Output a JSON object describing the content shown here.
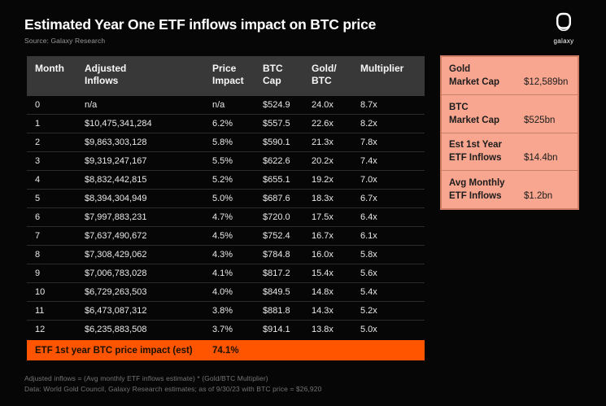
{
  "header": {
    "title": "Estimated Year One ETF inflows impact on BTC price",
    "source": "Source: Galaxy Research",
    "logo_text": "galaxy"
  },
  "table": {
    "columns_display": [
      "Month",
      "Adjusted\nInflows",
      "Price\nImpact",
      "BTC\nCap",
      "Gold/\nBTC",
      "Multiplier"
    ],
    "summary_label": "ETF 1st year BTC price impact (est)",
    "summary_value": "74.1%"
  },
  "sidebar": {
    "items": [
      {
        "label": "Gold\nMarket Cap",
        "value": "$12,589bn"
      },
      {
        "label": "BTC\nMarket Cap",
        "value": "$525bn"
      },
      {
        "label": "Est 1st Year\nETF Inflows",
        "value": "$14.4bn"
      },
      {
        "label": "Avg Monthly\nETF Inflows",
        "value": "$1.2bn"
      }
    ]
  },
  "footnotes": [
    "Adjusted inflows = (Avg monthly ETF inflows estimate) * (Gold/BTC Multiplier)",
    "Data: World Gold Council, Galaxy Research estimates; as of 9/30/23 with BTC price = $26,920"
  ],
  "colors": {
    "background": "#060606",
    "table_header_gray": "#383838",
    "accent_orange": "#ff5500",
    "panel_salmon": "#f8a68f",
    "panel_border": "#cd7b62",
    "footnote_gray": "#747474"
  },
  "chart_data": {
    "type": "table",
    "title": "Estimated Year One ETF inflows impact on BTC price",
    "source": "Galaxy Research",
    "columns": [
      "Month",
      "Adjusted Inflows",
      "Price Impact",
      "BTC Cap",
      "Gold/BTC",
      "Multiplier"
    ],
    "rows": [
      [
        "0",
        "n/a",
        "n/a",
        "$524.9",
        "24.0x",
        "8.7x"
      ],
      [
        "1",
        "$10,475,341,284",
        "6.2%",
        "$557.5",
        "22.6x",
        "8.2x"
      ],
      [
        "2",
        "$9,863,303,128",
        "5.8%",
        "$590.1",
        "21.3x",
        "7.8x"
      ],
      [
        "3",
        "$9,319,247,167",
        "5.5%",
        "$622.6",
        "20.2x",
        "7.4x"
      ],
      [
        "4",
        "$8,832,442,815",
        "5.2%",
        "$655.1",
        "19.2x",
        "7.0x"
      ],
      [
        "5",
        "$8,394,304,949",
        "5.0%",
        "$687.6",
        "18.3x",
        "6.7x"
      ],
      [
        "6",
        "$7,997,883,231",
        "4.7%",
        "$720.0",
        "17.5x",
        "6.4x"
      ],
      [
        "7",
        "$7,637,490,672",
        "4.5%",
        "$752.4",
        "16.7x",
        "6.1x"
      ],
      [
        "8",
        "$7,308,429,062",
        "4.3%",
        "$784.8",
        "16.0x",
        "5.8x"
      ],
      [
        "9",
        "$7,006,783,028",
        "4.1%",
        "$817.2",
        "15.4x",
        "5.6x"
      ],
      [
        "10",
        "$6,729,263,503",
        "4.0%",
        "$849.5",
        "14.8x",
        "5.4x"
      ],
      [
        "11",
        "$6,473,087,312",
        "3.8%",
        "$881.8",
        "14.3x",
        "5.2x"
      ],
      [
        "12",
        "$6,235,883,508",
        "3.7%",
        "$914.1",
        "13.8x",
        "5.0x"
      ]
    ],
    "summary": {
      "label": "ETF 1st year BTC price impact (est)",
      "value": "74.1%"
    },
    "key_stats": [
      {
        "label": "Gold Market Cap",
        "value": "$12,589bn"
      },
      {
        "label": "BTC Market Cap",
        "value": "$525bn"
      },
      {
        "label": "Est 1st Year ETF Inflows",
        "value": "$14.4bn"
      },
      {
        "label": "Avg Monthly ETF Inflows",
        "value": "$1.2bn"
      }
    ]
  }
}
